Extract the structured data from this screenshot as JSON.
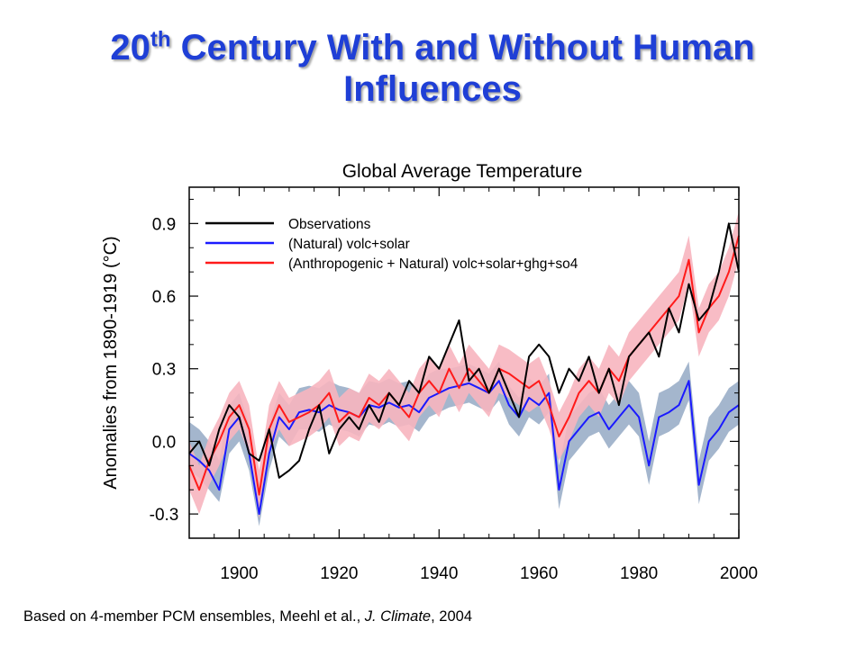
{
  "slide": {
    "title_prefix": "20",
    "title_sup": "th",
    "title_rest_line1": " Century With and Without Human",
    "title_line2": "Influences",
    "caption_pre": "Based on 4-member PCM ensembles, Meehl et al., ",
    "caption_journal": "J. Climate",
    "caption_post": ", 2004",
    "title_color": "#1f3fd6"
  },
  "chart_data": {
    "type": "line",
    "title": "Global Average Temperature",
    "xlabel": "",
    "ylabel": "Anomalies from 1890-1919 (°C)",
    "xlim": [
      1890,
      2000
    ],
    "ylim": [
      -0.4,
      1.05
    ],
    "xticks": [
      1900,
      1920,
      1940,
      1960,
      1980,
      2000
    ],
    "yticks": [
      -0.3,
      0.0,
      0.3,
      0.6,
      0.9
    ],
    "ytick_labels": [
      "-0.3",
      "0.0",
      "0.3",
      "0.6",
      "0.9"
    ],
    "grid": false,
    "legend_position": "top-left",
    "x": [
      1890,
      1892,
      1894,
      1896,
      1898,
      1900,
      1902,
      1904,
      1906,
      1908,
      1910,
      1912,
      1914,
      1916,
      1918,
      1920,
      1922,
      1924,
      1926,
      1928,
      1930,
      1932,
      1934,
      1936,
      1938,
      1940,
      1942,
      1944,
      1946,
      1948,
      1950,
      1952,
      1954,
      1956,
      1958,
      1960,
      1962,
      1964,
      1966,
      1968,
      1970,
      1972,
      1974,
      1976,
      1978,
      1980,
      1982,
      1984,
      1986,
      1988,
      1990,
      1992,
      1994,
      1996,
      1998,
      2000
    ],
    "series": [
      {
        "name": "Observations",
        "color": "#000000",
        "values": [
          -0.05,
          0.0,
          -0.1,
          0.05,
          0.15,
          0.1,
          -0.05,
          -0.08,
          0.05,
          -0.15,
          -0.12,
          -0.08,
          0.05,
          0.15,
          -0.05,
          0.05,
          0.1,
          0.05,
          0.15,
          0.08,
          0.2,
          0.15,
          0.25,
          0.2,
          0.35,
          0.3,
          0.4,
          0.5,
          0.25,
          0.3,
          0.2,
          0.3,
          0.2,
          0.1,
          0.35,
          0.4,
          0.35,
          0.2,
          0.3,
          0.25,
          0.35,
          0.2,
          0.3,
          0.15,
          0.35,
          0.4,
          0.45,
          0.35,
          0.55,
          0.45,
          0.65,
          0.5,
          0.55,
          0.7,
          0.9,
          0.7
        ]
      },
      {
        "name": "(Natural) volc+solar",
        "color": "#1a1aff",
        "values": [
          -0.05,
          -0.08,
          -0.12,
          -0.2,
          0.05,
          0.1,
          -0.05,
          -0.3,
          -0.05,
          0.1,
          0.05,
          0.12,
          0.13,
          0.12,
          0.15,
          0.13,
          0.12,
          0.1,
          0.15,
          0.14,
          0.16,
          0.14,
          0.15,
          0.12,
          0.18,
          0.2,
          0.22,
          0.23,
          0.24,
          0.22,
          0.2,
          0.25,
          0.15,
          0.1,
          0.18,
          0.15,
          0.2,
          -0.2,
          0.0,
          0.05,
          0.1,
          0.12,
          0.05,
          0.1,
          0.15,
          0.1,
          -0.1,
          0.1,
          0.12,
          0.15,
          0.25,
          -0.18,
          0.0,
          0.05,
          0.12,
          0.15
        ]
      },
      {
        "name": "(Anthropogenic + Natural) volc+solar+ghg+so4",
        "color": "#ff1a1a",
        "values": [
          -0.1,
          -0.2,
          -0.08,
          0.0,
          0.1,
          0.15,
          0.05,
          -0.22,
          0.05,
          0.15,
          0.08,
          0.1,
          0.12,
          0.15,
          0.2,
          0.08,
          0.12,
          0.1,
          0.18,
          0.15,
          0.2,
          0.15,
          0.1,
          0.2,
          0.25,
          0.2,
          0.3,
          0.22,
          0.3,
          0.25,
          0.2,
          0.3,
          0.28,
          0.25,
          0.22,
          0.25,
          0.15,
          0.02,
          0.1,
          0.2,
          0.25,
          0.2,
          0.3,
          0.25,
          0.35,
          0.4,
          0.45,
          0.5,
          0.55,
          0.6,
          0.75,
          0.45,
          0.55,
          0.6,
          0.7,
          0.85
        ]
      }
    ],
    "bands": [
      {
        "of": "(Natural) volc+solar",
        "color": "#9aaec8",
        "low": [
          -0.12,
          -0.15,
          -0.2,
          -0.25,
          -0.05,
          0.0,
          -0.12,
          -0.35,
          -0.12,
          0.02,
          -0.02,
          0.05,
          0.05,
          0.04,
          0.07,
          0.05,
          0.04,
          0.02,
          0.07,
          0.06,
          0.08,
          0.06,
          0.07,
          0.04,
          0.1,
          0.12,
          0.14,
          0.15,
          0.16,
          0.14,
          0.12,
          0.17,
          0.07,
          0.02,
          0.1,
          0.07,
          0.12,
          -0.28,
          -0.08,
          -0.03,
          0.02,
          0.04,
          -0.03,
          0.02,
          0.07,
          0.02,
          -0.18,
          0.02,
          0.04,
          0.07,
          0.17,
          -0.26,
          -0.08,
          -0.03,
          0.04,
          0.07
        ],
        "high": [
          0.08,
          0.05,
          0.0,
          -0.08,
          0.15,
          0.2,
          0.07,
          -0.18,
          0.07,
          0.2,
          0.15,
          0.22,
          0.23,
          0.22,
          0.25,
          0.23,
          0.22,
          0.2,
          0.25,
          0.24,
          0.26,
          0.24,
          0.25,
          0.22,
          0.28,
          0.3,
          0.3,
          0.31,
          0.32,
          0.3,
          0.28,
          0.33,
          0.23,
          0.18,
          0.26,
          0.23,
          0.28,
          -0.1,
          0.1,
          0.15,
          0.2,
          0.22,
          0.15,
          0.2,
          0.25,
          0.2,
          0.0,
          0.2,
          0.22,
          0.25,
          0.33,
          -0.08,
          0.1,
          0.15,
          0.22,
          0.25
        ]
      },
      {
        "of": "(Anthropogenic + Natural) volc+solar+ghg+so4",
        "color": "#f7b5bf",
        "low": [
          -0.2,
          -0.3,
          -0.18,
          -0.1,
          0.0,
          0.05,
          -0.05,
          -0.32,
          -0.05,
          0.05,
          -0.02,
          0.0,
          0.02,
          0.05,
          0.1,
          -0.02,
          0.02,
          0.0,
          0.08,
          0.05,
          0.1,
          0.05,
          0.0,
          0.1,
          0.15,
          0.1,
          0.2,
          0.12,
          0.2,
          0.15,
          0.1,
          0.2,
          0.18,
          0.15,
          0.12,
          0.15,
          0.05,
          -0.08,
          0.0,
          0.1,
          0.15,
          0.1,
          0.2,
          0.15,
          0.25,
          0.3,
          0.35,
          0.4,
          0.45,
          0.5,
          0.65,
          0.35,
          0.45,
          0.5,
          0.6,
          0.75
        ],
        "high": [
          0.0,
          -0.1,
          0.02,
          0.1,
          0.2,
          0.25,
          0.15,
          -0.12,
          0.15,
          0.25,
          0.18,
          0.2,
          0.22,
          0.25,
          0.3,
          0.18,
          0.22,
          0.2,
          0.28,
          0.25,
          0.3,
          0.25,
          0.2,
          0.3,
          0.35,
          0.3,
          0.4,
          0.32,
          0.4,
          0.35,
          0.3,
          0.4,
          0.38,
          0.35,
          0.32,
          0.35,
          0.25,
          0.12,
          0.2,
          0.3,
          0.35,
          0.3,
          0.4,
          0.35,
          0.45,
          0.5,
          0.55,
          0.6,
          0.65,
          0.7,
          0.85,
          0.55,
          0.65,
          0.7,
          0.8,
          0.95
        ]
      }
    ]
  }
}
